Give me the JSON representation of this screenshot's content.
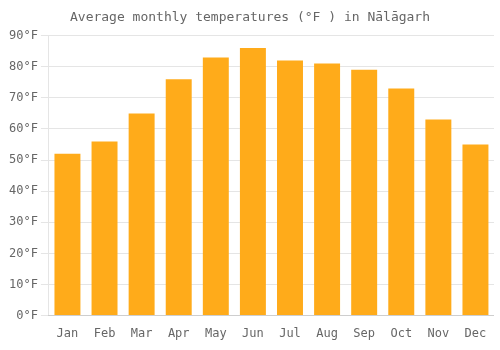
{
  "chart_data": {
    "type": "bar",
    "title": "Average monthly temperatures (°F ) in Nālāgarh",
    "categories": [
      "Jan",
      "Feb",
      "Mar",
      "Apr",
      "May",
      "Jun",
      "Jul",
      "Aug",
      "Sep",
      "Oct",
      "Nov",
      "Dec"
    ],
    "values": [
      52,
      56,
      65,
      76,
      83,
      86,
      82,
      81,
      79,
      73,
      63,
      55
    ],
    "color": "#FFAB1A",
    "ylim": [
      0,
      90
    ],
    "yticks": [
      {
        "value": 0,
        "label": "0°F"
      },
      {
        "value": 10,
        "label": "10°F"
      },
      {
        "value": 20,
        "label": "20°F"
      },
      {
        "value": 30,
        "label": "30°F"
      },
      {
        "value": 40,
        "label": "40°F"
      },
      {
        "value": 50,
        "label": "50°F"
      },
      {
        "value": 60,
        "label": "60°F"
      },
      {
        "value": 70,
        "label": "70°F"
      },
      {
        "value": 80,
        "label": "80°F"
      },
      {
        "value": 90,
        "label": "90°F"
      }
    ],
    "grid": true
  }
}
